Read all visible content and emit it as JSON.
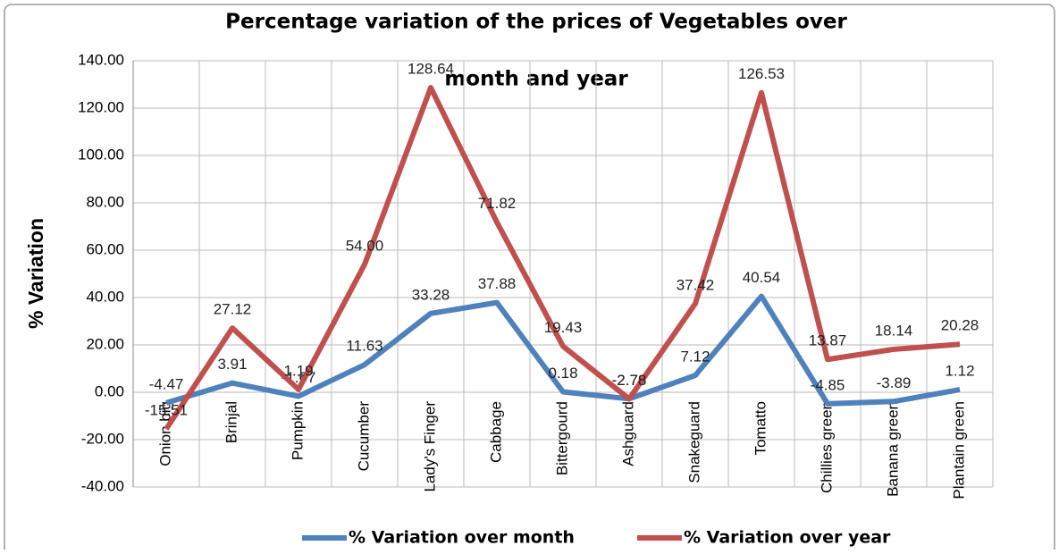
{
  "chart_data": {
    "type": "line",
    "title": [
      "Percentage variation of the prices of Vegetables over",
      "month and year"
    ],
    "y_label": "% Variation",
    "categories": [
      "Onion big",
      "Brinjal",
      "Pumpkin",
      "Cucumber",
      "Lady's Finger",
      "Cabbage",
      "Bittergourd",
      "Ashguard",
      "Snakeguard",
      "Tomatto",
      "Chillies green",
      "Banana green",
      "Plantain green"
    ],
    "series": [
      {
        "name": "% Variation over month",
        "color": "#4f81bd",
        "values": [
          -4.47,
          3.91,
          -1.67,
          11.63,
          33.28,
          37.88,
          0.18,
          -2.76,
          7.12,
          40.54,
          -4.85,
          -3.89,
          1.12
        ],
        "value_labels": [
          "-4.47",
          "3.91",
          "-1.67",
          "11.63",
          "33.28",
          "37.88",
          "0.18",
          "-2.76",
          "7.12",
          "40.54",
          "-4.85",
          "-3.89",
          "1.12"
        ]
      },
      {
        "name": "% Variation over year",
        "color": "#c0504d",
        "values": [
          -15.51,
          27.12,
          1.19,
          54.0,
          128.64,
          71.82,
          19.43,
          -2.78,
          37.42,
          126.53,
          13.87,
          18.14,
          20.28
        ],
        "value_labels": [
          "-15.51",
          "27.12",
          "1.19",
          "54.00",
          "128.64",
          "71.82",
          "19.43",
          "-2.78",
          "37.42",
          "126.53",
          "13.87",
          "18.14",
          "20.28"
        ]
      }
    ],
    "ylim": [
      -40,
      140
    ],
    "yticks": [
      {
        "value": -40,
        "label": "-40.00"
      },
      {
        "value": -20,
        "label": "-20.00"
      },
      {
        "value": 0,
        "label": "0.00"
      },
      {
        "value": 20,
        "label": "20.00"
      },
      {
        "value": 40,
        "label": "40.00"
      },
      {
        "value": 60,
        "label": "60.00"
      },
      {
        "value": 80,
        "label": "80.00"
      },
      {
        "value": 100,
        "label": "100.00"
      },
      {
        "value": 120,
        "label": "120.00"
      },
      {
        "value": 140,
        "label": "140.00"
      }
    ],
    "grid": true,
    "legend": "bottom"
  }
}
